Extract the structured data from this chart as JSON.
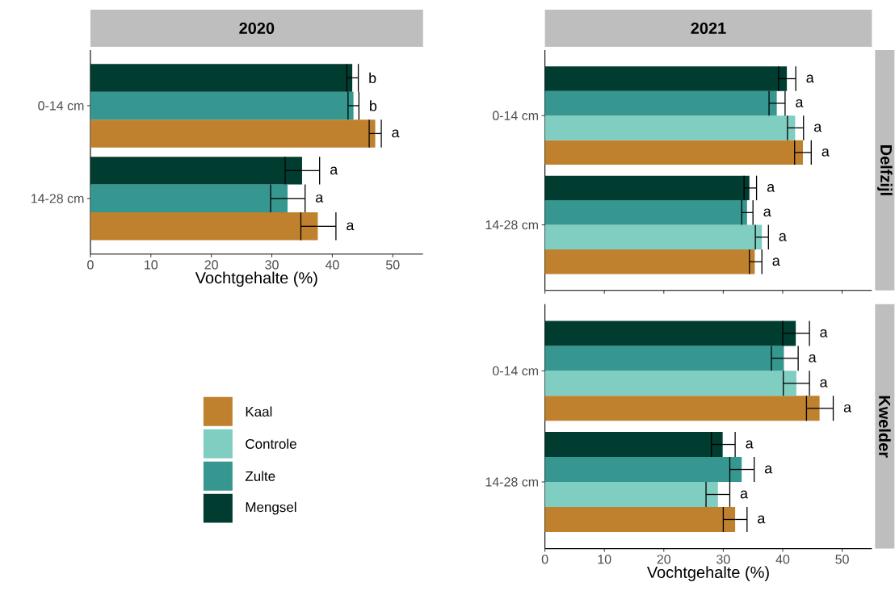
{
  "chart_data": [
    {
      "type": "bar",
      "orientation": "horizontal",
      "title": "2020",
      "xlabel": "Vochtgehalte (%)",
      "categories": [
        "0-14 cm",
        "14-28 cm"
      ],
      "xlim": [
        0,
        55
      ],
      "xticks": [
        0,
        10,
        20,
        30,
        40,
        50
      ],
      "series": [
        {
          "color": "#bf812d",
          "values": [
            47.1,
            37.6
          ],
          "errors": [
            [
              46.1,
              48.1
            ],
            [
              34.8,
              40.6
            ]
          ],
          "value_labels": [
            "a",
            "a"
          ]
        },
        {
          "color": "#35978f",
          "values": [
            43.5,
            32.6
          ],
          "errors": [
            [
              42.6,
              44.4
            ],
            [
              29.8,
              35.5
            ]
          ],
          "value_labels": [
            "b",
            "a"
          ]
        },
        {
          "color": "#003c30",
          "values": [
            43.3,
            35.0
          ],
          "errors": [
            [
              42.4,
              44.3
            ],
            [
              32.2,
              37.9
            ]
          ],
          "value_labels": [
            "b",
            "a"
          ]
        }
      ]
    },
    {
      "type": "bar",
      "orientation": "horizontal",
      "title": "2021",
      "subtitle": "Delfzijl",
      "categories": [
        "0-14 cm",
        "14-28 cm"
      ],
      "xlim": [
        0,
        55
      ],
      "xticks": [
        0,
        10,
        20,
        30,
        40,
        50
      ],
      "tick_labels": "y",
      "series": [
        {
          "color": "#bf812d",
          "values": [
            43.4,
            35.3
          ],
          "errors": [
            [
              42.0,
              44.8
            ],
            [
              34.4,
              36.5
            ]
          ],
          "value_labels": [
            "a",
            "a"
          ]
        },
        {
          "color": "#80cdc1",
          "values": [
            42.1,
            36.5
          ],
          "errors": [
            [
              40.8,
              43.5
            ],
            [
              35.4,
              37.6
            ]
          ],
          "value_labels": [
            "a",
            "a"
          ]
        },
        {
          "color": "#35978f",
          "values": [
            39.0,
            34.0
          ],
          "errors": [
            [
              37.7,
              40.4
            ],
            [
              33.1,
              35.0
            ]
          ],
          "value_labels": [
            "a",
            "a"
          ]
        },
        {
          "color": "#003c30",
          "values": [
            40.7,
            34.4
          ],
          "errors": [
            [
              39.3,
              42.2
            ],
            [
              33.5,
              35.6
            ]
          ],
          "value_labels": [
            "a",
            "a"
          ]
        }
      ]
    },
    {
      "type": "bar",
      "orientation": "horizontal",
      "subtitle": "Kwelder",
      "xlabel": "Vochtgehalte (%)",
      "categories": [
        "0-14 cm",
        "14-28 cm"
      ],
      "xlim": [
        0,
        55
      ],
      "xticks": [
        0,
        10,
        20,
        30,
        40,
        50
      ],
      "legend": "left",
      "series": [
        {
          "name": "Kaal",
          "color": "#bf812d",
          "values": [
            46.2,
            32.0
          ],
          "errors": [
            [
              44.0,
              48.5
            ],
            [
              30.0,
              34.0
            ]
          ],
          "value_labels": [
            "a",
            "a"
          ]
        },
        {
          "name": "Controle",
          "color": "#80cdc1",
          "values": [
            42.3,
            29.1
          ],
          "errors": [
            [
              40.1,
              44.5
            ],
            [
              27.1,
              31.1
            ]
          ],
          "value_labels": [
            "a",
            "a"
          ]
        },
        {
          "name": "Zulte",
          "color": "#35978f",
          "values": [
            40.2,
            33.1
          ],
          "errors": [
            [
              38.1,
              42.6
            ],
            [
              31.1,
              35.2
            ]
          ],
          "value_labels": [
            "a",
            "a"
          ]
        },
        {
          "name": "Mengsel",
          "color": "#003c30",
          "values": [
            42.2,
            29.9
          ],
          "errors": [
            [
              40.0,
              44.5
            ],
            [
              28.0,
              32.0
            ]
          ],
          "value_labels": [
            "a",
            "a"
          ]
        }
      ]
    }
  ]
}
